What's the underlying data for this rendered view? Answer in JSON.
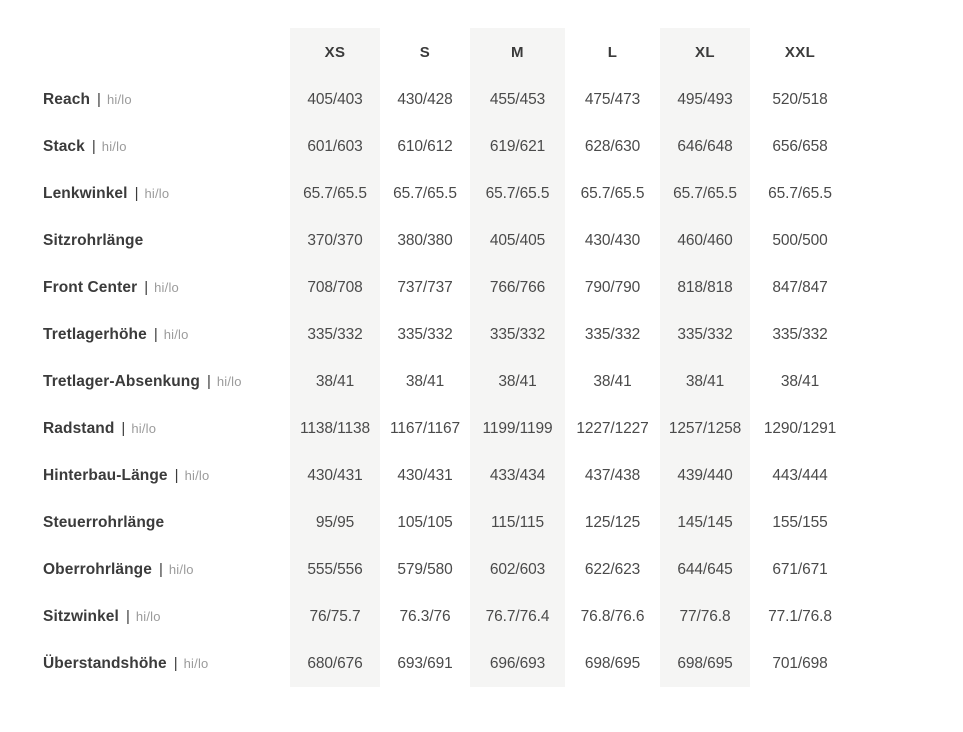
{
  "table": {
    "separator": "|",
    "hi_lo_suffix": "hi/lo",
    "sizes": [
      "XS",
      "S",
      "M",
      "L",
      "XL",
      "XXL"
    ],
    "rows": [
      {
        "label": "Reach",
        "hilo": true,
        "values": [
          "405/403",
          "430/428",
          "455/453",
          "475/473",
          "495/493",
          "520/518"
        ]
      },
      {
        "label": "Stack",
        "hilo": true,
        "values": [
          "601/603",
          "610/612",
          "619/621",
          "628/630",
          "646/648",
          "656/658"
        ]
      },
      {
        "label": "Lenkwinkel",
        "hilo": true,
        "values": [
          "65.7/65.5",
          "65.7/65.5",
          "65.7/65.5",
          "65.7/65.5",
          "65.7/65.5",
          "65.7/65.5"
        ]
      },
      {
        "label": "Sitzrohrlänge",
        "hilo": false,
        "values": [
          "370/370",
          "380/380",
          "405/405",
          "430/430",
          "460/460",
          "500/500"
        ]
      },
      {
        "label": "Front Center",
        "hilo": true,
        "values": [
          "708/708",
          "737/737",
          "766/766",
          "790/790",
          "818/818",
          "847/847"
        ]
      },
      {
        "label": "Tretlagerhöhe",
        "hilo": true,
        "values": [
          "335/332",
          "335/332",
          "335/332",
          "335/332",
          "335/332",
          "335/332"
        ]
      },
      {
        "label": "Tretlager-Absenkung",
        "hilo": true,
        "values": [
          "38/41",
          "38/41",
          "38/41",
          "38/41",
          "38/41",
          "38/41"
        ]
      },
      {
        "label": "Radstand",
        "hilo": true,
        "values": [
          "1138/1138",
          "1167/1167",
          "1199/1199",
          "1227/1227",
          "1257/1258",
          "1290/1291"
        ]
      },
      {
        "label": "Hinterbau-Länge",
        "hilo": true,
        "values": [
          "430/431",
          "430/431",
          "433/434",
          "437/438",
          "439/440",
          "443/444"
        ]
      },
      {
        "label": "Steuerrohrlänge",
        "hilo": false,
        "values": [
          "95/95",
          "105/105",
          "115/115",
          "125/125",
          "145/145",
          "155/155"
        ]
      },
      {
        "label": "Oberrohrlänge",
        "hilo": true,
        "values": [
          "555/556",
          "579/580",
          "602/603",
          "622/623",
          "644/645",
          "671/671"
        ]
      },
      {
        "label": "Sitzwinkel",
        "hilo": true,
        "values": [
          "76/75.7",
          "76.3/76",
          "76.7/76.4",
          "76.8/76.6",
          "77/76.8",
          "77.1/76.8"
        ]
      },
      {
        "label": "Überstandshöhe",
        "hilo": true,
        "values": [
          "680/676",
          "693/691",
          "696/693",
          "698/695",
          "698/695",
          "701/698"
        ]
      }
    ],
    "colors": {
      "shaded_column_bg": "#f5f5f4",
      "label_text": "#3b3b3b",
      "hilo_text": "#9b9b9b",
      "value_text": "#4a4a4a"
    }
  }
}
